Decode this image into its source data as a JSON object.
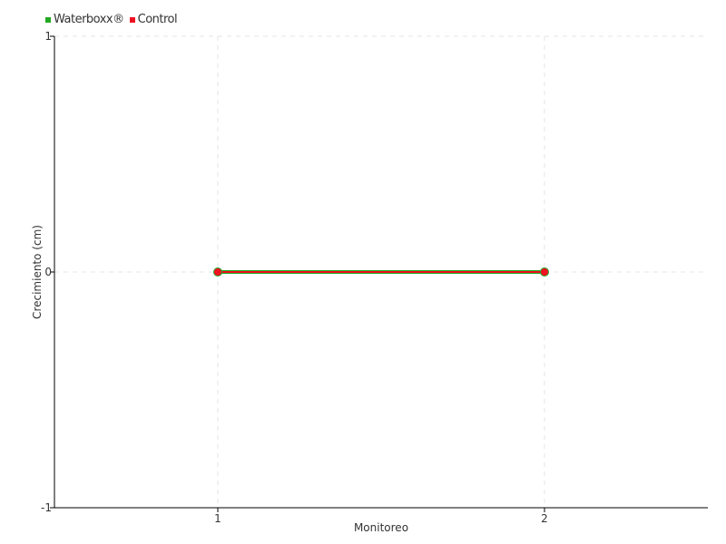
{
  "chart_data": {
    "type": "line",
    "title": "",
    "xlabel": "Monitoreo",
    "ylabel": "Crecimiento (cm)",
    "xlim": [
      0.5,
      2.5
    ],
    "ylim": [
      -1,
      1
    ],
    "x_ticks": [
      1,
      2
    ],
    "y_ticks": [
      -1,
      0,
      1
    ],
    "grid": true,
    "legend_placement": "top-left",
    "series": [
      {
        "name": "Waterboxx®",
        "color": "#22a822",
        "x": [
          1,
          2
        ],
        "y": [
          0,
          0
        ]
      },
      {
        "name": "Control",
        "color": "#ee1122",
        "x": [
          1,
          2
        ],
        "y": [
          0,
          0
        ]
      }
    ]
  }
}
